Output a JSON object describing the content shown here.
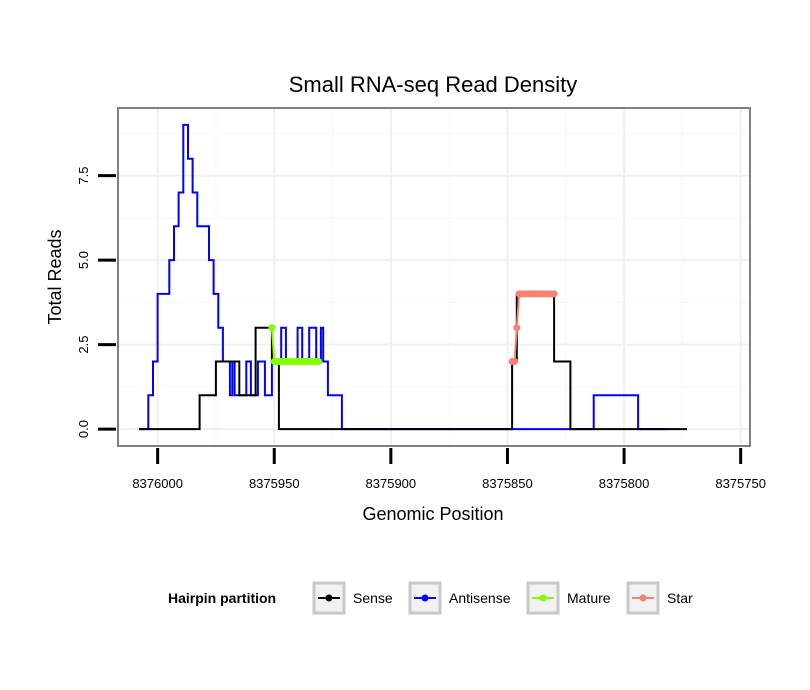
{
  "chart_data": {
    "type": "line",
    "title": "Small RNA-seq Read Density",
    "xlabel": "Genomic Position",
    "ylabel": "Total Reads",
    "xlim": [
      8376017,
      8375746
    ],
    "ylim": [
      -0.5,
      9.5
    ],
    "x_reversed": true,
    "x_ticks": [
      8376000,
      8375950,
      8375900,
      8375850,
      8375800,
      8375750
    ],
    "x_tick_labels": [
      "8376000",
      "8375950",
      "8375900",
      "8375850",
      "8375800",
      "8375750"
    ],
    "y_ticks": [
      0,
      2.5,
      5,
      7.5
    ],
    "y_tick_labels": [
      "0.0",
      "2.5",
      "5.0",
      "7.5"
    ],
    "grid": true,
    "legend": {
      "title": "Hairpin partition",
      "position": "bottom",
      "entries": [
        {
          "name": "Sense",
          "color": "#000000"
        },
        {
          "name": "Antisense",
          "color": "#0000ff"
        },
        {
          "name": "Mature",
          "color": "#7fff00"
        },
        {
          "name": "Star",
          "color": "#fa8072"
        }
      ]
    },
    "series": [
      {
        "name": "Antisense",
        "color": "#0000ff",
        "marker": false,
        "x": [
          8376008,
          8376004,
          8376004,
          8376002,
          8376002,
          8376000,
          8376000,
          8375995,
          8375995,
          8375993,
          8375993,
          8375991,
          8375991,
          8375989,
          8375989,
          8375987,
          8375987,
          8375985,
          8375985,
          8375983,
          8375983,
          8375978,
          8375978,
          8375976,
          8375976,
          8375974,
          8375974,
          8375972,
          8375972,
          8375969,
          8375969,
          8375968,
          8375968,
          8375967,
          8375967,
          8375962,
          8375962,
          8375960,
          8375960,
          8375957,
          8375957,
          8375954,
          8375954,
          8375951,
          8375951,
          8375947,
          8375947,
          8375945,
          8375945,
          8375940,
          8375940,
          8375938,
          8375938,
          8375935,
          8375935,
          8375932,
          8375932,
          8375930,
          8375930,
          8375929,
          8375929,
          8375927,
          8375927,
          8375921,
          8375921,
          8375916,
          8375916,
          8375914,
          8375914,
          8375911,
          8375911,
          8375909,
          8375909,
          8375904,
          8375904,
          8375903,
          8375903,
          8375881,
          8375881,
          8375813,
          8375813,
          8375794,
          8375794,
          8375781
        ],
        "y": [
          0,
          0,
          1,
          1,
          2,
          2,
          4,
          4,
          5,
          5,
          6,
          6,
          7,
          7,
          9,
          9,
          8,
          8,
          7,
          7,
          6,
          6,
          5,
          5,
          4,
          4,
          3,
          3,
          2,
          2,
          1,
          1,
          2,
          2,
          1,
          1,
          2,
          2,
          1,
          1,
          2,
          2,
          1,
          1,
          2,
          2,
          3,
          3,
          2,
          2,
          3,
          3,
          2,
          2,
          3,
          3,
          2,
          2,
          3,
          3,
          2,
          2,
          1,
          1,
          0,
          0,
          0,
          0,
          0,
          0,
          0,
          0,
          0,
          0,
          0,
          0,
          0,
          0,
          0,
          0,
          1,
          1,
          0,
          0
        ]
      },
      {
        "name": "Sense",
        "color": "#000000",
        "marker": false,
        "x": [
          8376008,
          8375982,
          8375982,
          8375975,
          8375975,
          8375965,
          8375965,
          8375958,
          8375958,
          8375951,
          8375951,
          8375950,
          8375950,
          8375948,
          8375948,
          8375931,
          8375931,
          8375848,
          8375848,
          8375846,
          8375846,
          8375843,
          8375843,
          8375830,
          8375830,
          8375826,
          8375826,
          8375823,
          8375823,
          8375773
        ],
        "y": [
          0,
          0,
          1,
          1,
          2,
          2,
          1,
          1,
          3,
          3,
          2,
          2,
          2,
          2,
          0,
          0,
          0,
          0,
          2,
          2,
          4,
          4,
          4,
          4,
          2,
          2,
          2,
          2,
          0,
          0
        ]
      },
      {
        "name": "Mature",
        "color": "#7fff00",
        "marker": true,
        "x": [
          8375951,
          8375950,
          8375949,
          8375948,
          8375947,
          8375946,
          8375945,
          8375944,
          8375943,
          8375942,
          8375941,
          8375940,
          8375939,
          8375938,
          8375937,
          8375936,
          8375935,
          8375934,
          8375933,
          8375932,
          8375931
        ],
        "y": [
          3,
          2,
          2,
          2,
          2,
          2,
          2,
          2,
          2,
          2,
          2,
          2,
          2,
          2,
          2,
          2,
          2,
          2,
          2,
          2,
          2
        ]
      },
      {
        "name": "Star",
        "color": "#fa8072",
        "marker": true,
        "x": [
          8375848,
          8375847,
          8375846,
          8375845,
          8375844,
          8375843,
          8375842,
          8375841,
          8375840,
          8375839,
          8375838,
          8375837,
          8375836,
          8375835,
          8375834,
          8375833,
          8375832,
          8375831,
          8375830
        ],
        "y": [
          2,
          2,
          3,
          4,
          4,
          4,
          4,
          4,
          4,
          4,
          4,
          4,
          4,
          4,
          4,
          4,
          4,
          4,
          4
        ]
      }
    ]
  }
}
